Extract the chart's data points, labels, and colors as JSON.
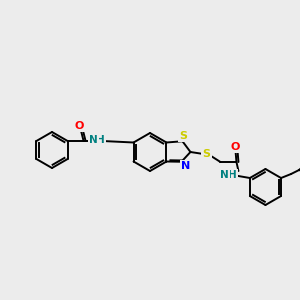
{
  "background_color": "#ececec",
  "bond_color": "#000000",
  "atom_colors": {
    "N": "#0000ff",
    "O": "#ff0000",
    "S": "#cccc00",
    "NH": "#008080",
    "C": "#000000"
  },
  "figsize": [
    3.0,
    3.0
  ],
  "dpi": 100
}
